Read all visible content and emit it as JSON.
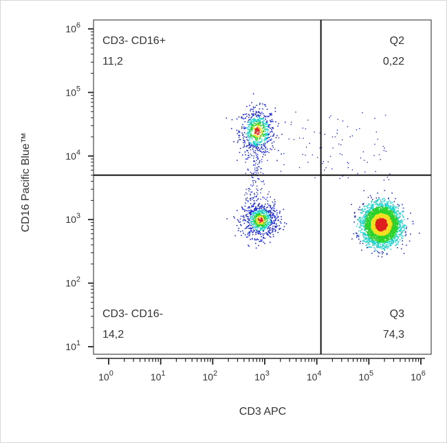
{
  "chart_data": {
    "type": "scatter",
    "xlabel": "CD3 APC",
    "ylabel": "CD16 Pacific Blue™",
    "x_scale": "log",
    "y_scale": "log",
    "xlim": [
      1,
      1000000
    ],
    "ylim": [
      10,
      1000000
    ],
    "x_ticks": [
      {
        "value": 1,
        "base": "10",
        "exp": "0"
      },
      {
        "value": 10,
        "base": "10",
        "exp": "1"
      },
      {
        "value": 100,
        "base": "10",
        "exp": "2"
      },
      {
        "value": 1000,
        "base": "10",
        "exp": "3"
      },
      {
        "value": 10000,
        "base": "10",
        "exp": "4"
      },
      {
        "value": 100000,
        "base": "10",
        "exp": "5"
      },
      {
        "value": 1000000,
        "base": "10",
        "exp": "6"
      }
    ],
    "y_ticks": [
      {
        "value": 10,
        "base": "10",
        "exp": "1"
      },
      {
        "value": 100,
        "base": "10",
        "exp": "2"
      },
      {
        "value": 1000,
        "base": "10",
        "exp": "3"
      },
      {
        "value": 10000,
        "base": "10",
        "exp": "4"
      },
      {
        "value": 100000,
        "base": "10",
        "exp": "5"
      },
      {
        "value": 1000000,
        "base": "10",
        "exp": "6"
      }
    ],
    "gates": {
      "x": 12000,
      "y": 5000
    },
    "quadrants": [
      {
        "position": "top-left",
        "name": "CD3- CD16+",
        "value": "11,2"
      },
      {
        "position": "top-right",
        "name": "Q2",
        "value": "0,22"
      },
      {
        "position": "bottom-left",
        "name": "CD3- CD16-",
        "value": "14,2"
      },
      {
        "position": "bottom-right",
        "name": "Q3",
        "value": "74,3"
      }
    ],
    "populations": [
      {
        "quadrant": "CD3- CD16+",
        "center": {
          "x": 700,
          "y": 25000
        },
        "percent": 11.2
      },
      {
        "quadrant": "CD3- CD16-",
        "center": {
          "x": 800,
          "y": 1000
        },
        "percent": 14.2
      },
      {
        "quadrant": "Q3",
        "center": {
          "x": 170000,
          "y": 850
        },
        "percent": 74.3
      }
    ],
    "colors": {
      "low_density": "#1f2bd1",
      "mid_density": "#1fd1c9",
      "high_density": "#2ad12a",
      "higher_density": "#f0e020",
      "peak_density": "#e01f1f",
      "gate_line": "#111111"
    },
    "grid": false
  }
}
